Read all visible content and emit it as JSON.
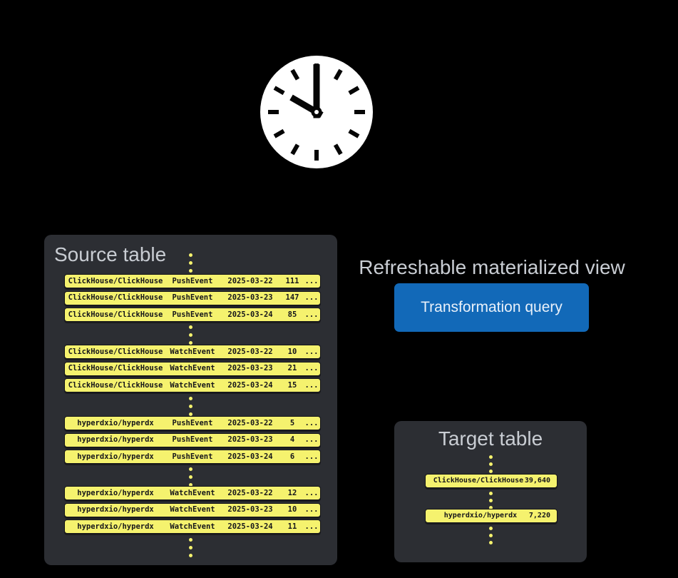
{
  "clock": {
    "time": "10:00"
  },
  "source_table": {
    "title": "Source table",
    "ellipsis": "...",
    "groups": [
      {
        "rows": [
          {
            "repo": "ClickHouse/ClickHouse",
            "event": "PushEvent",
            "date": "2025-03-22",
            "count": "111"
          },
          {
            "repo": "ClickHouse/ClickHouse",
            "event": "PushEvent",
            "date": "2025-03-23",
            "count": "147"
          },
          {
            "repo": "ClickHouse/ClickHouse",
            "event": "PushEvent",
            "date": "2025-03-24",
            "count": "85"
          }
        ]
      },
      {
        "rows": [
          {
            "repo": "ClickHouse/ClickHouse",
            "event": "WatchEvent",
            "date": "2025-03-22",
            "count": "10"
          },
          {
            "repo": "ClickHouse/ClickHouse",
            "event": "WatchEvent",
            "date": "2025-03-23",
            "count": "21"
          },
          {
            "repo": "ClickHouse/ClickHouse",
            "event": "WatchEvent",
            "date": "2025-03-24",
            "count": "15"
          }
        ]
      },
      {
        "rows": [
          {
            "repo": "hyperdxio/hyperdx",
            "event": "PushEvent",
            "date": "2025-03-22",
            "count": "5"
          },
          {
            "repo": "hyperdxio/hyperdx",
            "event": "PushEvent",
            "date": "2025-03-23",
            "count": "4"
          },
          {
            "repo": "hyperdxio/hyperdx",
            "event": "PushEvent",
            "date": "2025-03-24",
            "count": "6"
          }
        ]
      },
      {
        "rows": [
          {
            "repo": "hyperdxio/hyperdx",
            "event": "WatchEvent",
            "date": "2025-03-22",
            "count": "12"
          },
          {
            "repo": "hyperdxio/hyperdx",
            "event": "WatchEvent",
            "date": "2025-03-23",
            "count": "10"
          },
          {
            "repo": "hyperdxio/hyperdx",
            "event": "WatchEvent",
            "date": "2025-03-24",
            "count": "11"
          }
        ]
      }
    ]
  },
  "materialized_view": {
    "label": "Refreshable materialized view",
    "button_label": "Transformation query"
  },
  "target_table": {
    "title": "Target table",
    "rows": [
      {
        "repo": "ClickHouse/ClickHouse",
        "value": "39,640"
      },
      {
        "repo": "hyperdxio/hyperdx",
        "value": "7,220"
      }
    ]
  },
  "colors": {
    "background": "#000000",
    "panel_gray": "#2c2e33",
    "title_gray": "#c9cdd3",
    "row_yellow": "#f5f26e",
    "row_text": "#15151a",
    "accent_blue": "#1269b8",
    "button_text": "#e9f1fa",
    "clock_face": "#ffffff",
    "clock_marks": "#050505"
  }
}
